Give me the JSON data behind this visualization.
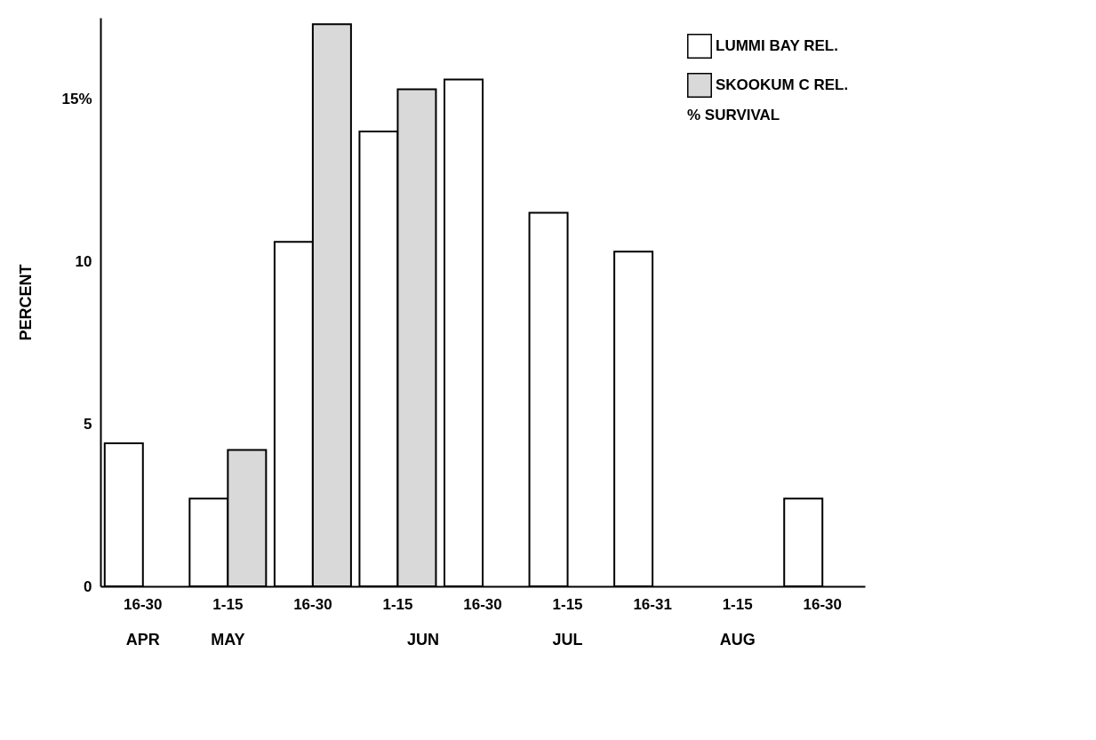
{
  "chart_data": {
    "type": "bar",
    "ylabel": "PERCENT",
    "legend_title": "% SURVIVAL",
    "legend": "top right",
    "grid": false,
    "categories": [
      "16-30",
      "1-15",
      "16-30",
      "1-15",
      "16-30",
      "1-15",
      "16-31",
      "1-15",
      "16-30"
    ],
    "series": [
      {
        "name": "LUMMI BAY REL.",
        "color": "#ffffff",
        "values": [
          4.4,
          2.7,
          10.6,
          14.0,
          15.6,
          11.5,
          10.3,
          null,
          2.7
        ]
      },
      {
        "name": "SKOOKUM C REL.",
        "color": "#d9d9d9",
        "values": [
          null,
          4.2,
          17.3,
          15.3,
          null,
          null,
          null,
          null,
          null
        ]
      }
    ],
    "ylim": [
      0,
      17.5
    ],
    "yticks": [
      0,
      5,
      10,
      {
        "value": 15,
        "label": "15%"
      }
    ],
    "annotations": [
      "APR",
      "MAY",
      "JUN",
      "JUL",
      "AUG"
    ]
  }
}
